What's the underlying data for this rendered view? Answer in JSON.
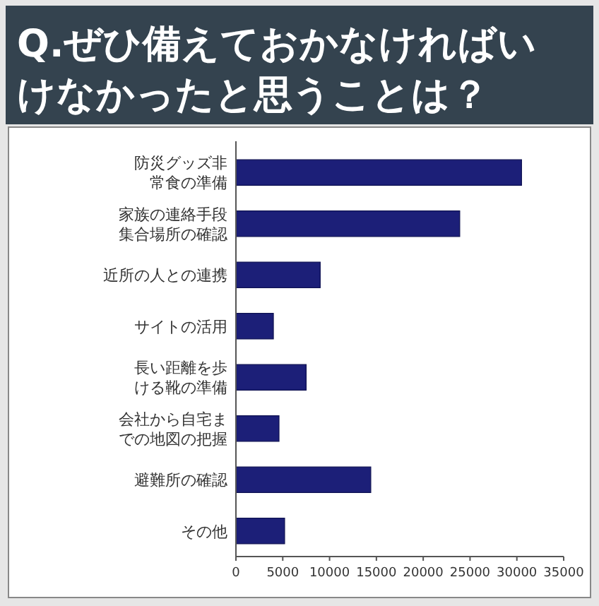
{
  "chart_data": {
    "type": "bar",
    "orientation": "horizontal",
    "title": "Q.ぜひ備えておかなければいけなかったと思うことは？",
    "categories": [
      "防災グッズ非常食の準備",
      "家族の連絡手段集合場所の確認",
      "近所の人との連携",
      "サイトの活用",
      "長い距離を歩ける靴の準備",
      "会社から自宅までの地図の把握",
      "避難所の確認",
      "その他"
    ],
    "values": [
      30500,
      23900,
      9000,
      4000,
      7500,
      4600,
      14400,
      5200
    ],
    "color": "#1c1f78",
    "xlim": [
      0,
      35000
    ],
    "xticks": [
      0,
      5000,
      10000,
      15000,
      20000,
      25000,
      30000,
      35000
    ]
  }
}
